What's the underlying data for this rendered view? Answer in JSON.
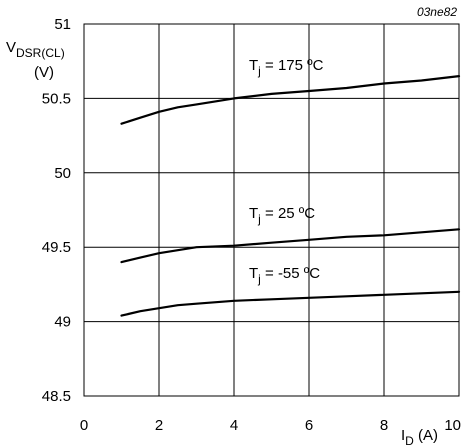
{
  "figure_id": "03ne82",
  "chart_data": {
    "type": "line",
    "xlabel": {
      "main": "I",
      "sub": "D",
      "unit": " (A)"
    },
    "ylabel": {
      "main": "V",
      "sub": "DSR(CL)",
      "unit": "(V)"
    },
    "xlim": [
      0,
      10
    ],
    "ylim": [
      48.5,
      51
    ],
    "x_ticks": [
      "0",
      "2",
      "4",
      "6",
      "8",
      "10"
    ],
    "y_ticks": [
      "48.5",
      "49",
      "49.5",
      "50",
      "50.5",
      "51"
    ],
    "grid": true,
    "series": [
      {
        "label": {
          "main": "T",
          "sub": "j",
          "rest": " = 175 ºC"
        },
        "x": [
          1,
          1.5,
          2,
          2.5,
          3,
          3.5,
          4,
          5,
          6,
          7,
          8,
          9,
          10
        ],
        "y": [
          50.33,
          50.37,
          50.41,
          50.44,
          50.46,
          50.48,
          50.5,
          50.53,
          50.55,
          50.57,
          50.6,
          50.62,
          50.65
        ]
      },
      {
        "label": {
          "main": "T",
          "sub": "j",
          "rest": " = 25 ºC"
        },
        "x": [
          1,
          1.5,
          2,
          2.5,
          3,
          4,
          5,
          6,
          7,
          8,
          9,
          10
        ],
        "y": [
          49.4,
          49.43,
          49.46,
          49.48,
          49.5,
          49.51,
          49.53,
          49.55,
          49.57,
          49.58,
          49.6,
          49.62
        ]
      },
      {
        "label": {
          "main": "T",
          "sub": "j",
          "rest": " = -55 ºC"
        },
        "x": [
          1,
          1.5,
          2,
          2.5,
          3,
          4,
          5,
          6,
          7,
          8,
          9,
          10
        ],
        "y": [
          49.04,
          49.07,
          49.09,
          49.11,
          49.12,
          49.14,
          49.15,
          49.16,
          49.17,
          49.18,
          49.19,
          49.2
        ]
      }
    ]
  }
}
